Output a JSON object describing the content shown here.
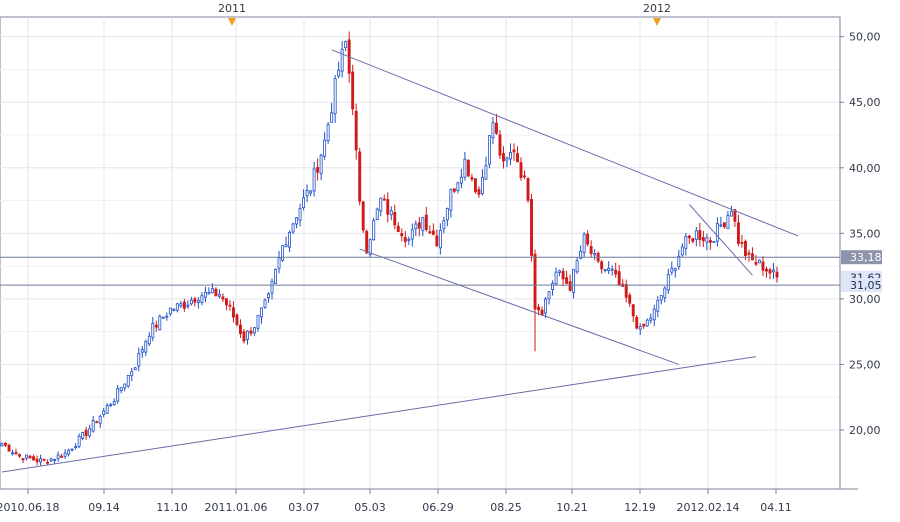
{
  "chart_data": {
    "type": "candlestick",
    "title": "",
    "xlabel": "",
    "ylabel": "",
    "ylim": [
      15.5,
      51.5
    ],
    "y_ticks": [
      "20,00",
      "25,00",
      "30,00",
      "35,00",
      "40,00",
      "45,00",
      "50,00"
    ],
    "y_tick_values": [
      20,
      25,
      30,
      35,
      40,
      45,
      50
    ],
    "x_ticks": [
      "2010.06.18",
      "09.14",
      "11.10",
      "2011.01.06",
      "03.07",
      "05.03",
      "06.29",
      "08.25",
      "10.21",
      "12.19",
      "2012.02.14",
      "04.11"
    ],
    "year_markers": [
      "2011",
      "2012"
    ],
    "grid": true,
    "colors": {
      "up": "#1f4fc8",
      "down": "#d11a1a",
      "line": "#6c6ca8",
      "grid": "#e4e6ee"
    },
    "price_tags": [
      {
        "label": "33,18",
        "value": 33.18,
        "bg": "#8f94ad",
        "fg": "#ffffff"
      },
      {
        "label": "31,62",
        "value": 31.62,
        "bg": "#dfe6f6",
        "fg": "#1a2a55"
      },
      {
        "label": "31,05",
        "value": 31.05,
        "bg": "#dfe6f6",
        "fg": "#1a2a55"
      }
    ],
    "horizontal_lines": [
      33.18,
      31.05
    ],
    "trendlines": [
      {
        "x1": 0,
        "y1": 16.8,
        "x2": 215,
        "y2": 25.6
      },
      {
        "x1": 94,
        "y1": 49.0,
        "x2": 227,
        "y2": 34.8
      },
      {
        "x1": 102,
        "y1": 33.8,
        "x2": 193,
        "y2": 25.0
      },
      {
        "x1": 196,
        "y1": 37.2,
        "x2": 214,
        "y2": 31.8
      }
    ],
    "pivots": [
      [
        0,
        19.0
      ],
      [
        5,
        18.0
      ],
      [
        12,
        17.6
      ],
      [
        18,
        18.2
      ],
      [
        24,
        19.8
      ],
      [
        32,
        22.4
      ],
      [
        38,
        25.0
      ],
      [
        42,
        27.5
      ],
      [
        48,
        29.2
      ],
      [
        52,
        29.6
      ],
      [
        56,
        30.3
      ],
      [
        62,
        30.4
      ],
      [
        65,
        29.2
      ],
      [
        69,
        27.0
      ],
      [
        72,
        28.0
      ],
      [
        76,
        30.0
      ],
      [
        80,
        34.0
      ],
      [
        84,
        36.5
      ],
      [
        88,
        38.5
      ],
      [
        92,
        42.0
      ],
      [
        96,
        47.5
      ],
      [
        98,
        49.5
      ],
      [
        100,
        45.0
      ],
      [
        102,
        37.0
      ],
      [
        104,
        34.0
      ],
      [
        108,
        37.5
      ],
      [
        112,
        36.0
      ],
      [
        116,
        34.5
      ],
      [
        120,
        36.2
      ],
      [
        124,
        34.5
      ],
      [
        128,
        38.0
      ],
      [
        132,
        40.5
      ],
      [
        136,
        38.0
      ],
      [
        140,
        43.5
      ],
      [
        143,
        40.0
      ],
      [
        146,
        41.5
      ],
      [
        150,
        38.0
      ],
      [
        152,
        29.5
      ],
      [
        154,
        29.2
      ],
      [
        158,
        32.0
      ],
      [
        162,
        31.0
      ],
      [
        166,
        34.5
      ],
      [
        170,
        32.5
      ],
      [
        174,
        32.0
      ],
      [
        178,
        30.0
      ],
      [
        182,
        27.5
      ],
      [
        186,
        29.0
      ],
      [
        190,
        31.5
      ],
      [
        194,
        34.0
      ],
      [
        198,
        35.0
      ],
      [
        202,
        34.5
      ],
      [
        206,
        36.0
      ],
      [
        208,
        37.0
      ],
      [
        210,
        34.5
      ],
      [
        213,
        33.0
      ],
      [
        217,
        32.5
      ],
      [
        221,
        31.6
      ]
    ],
    "seed": 7
  }
}
